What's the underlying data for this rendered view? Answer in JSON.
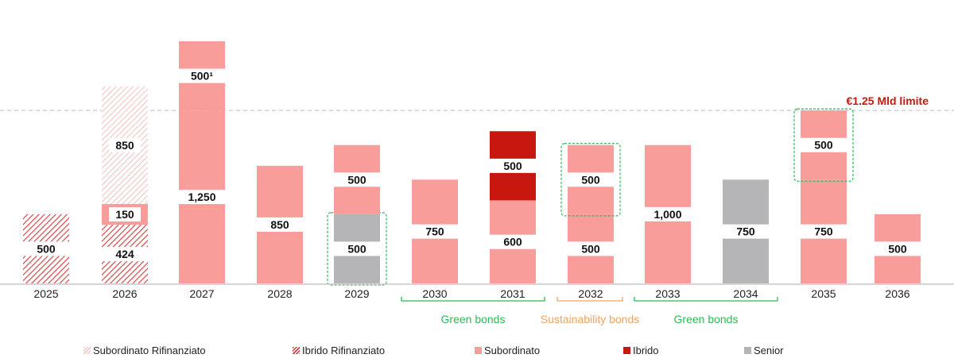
{
  "chart_data": {
    "type": "bar",
    "stacked": true,
    "title": "",
    "xlabel": "",
    "ylabel": "",
    "ylim": [
      0,
      1750
    ],
    "grid": false,
    "categories": [
      "2025",
      "2026",
      "2027",
      "2028",
      "2029",
      "2030",
      "2031",
      "2032",
      "2033",
      "2034",
      "2035",
      "2036"
    ],
    "colors": {
      "Subordinato Rifinanziato": "#f7c6c3",
      "Ibrido Rifinanziato": "#d9393a",
      "Subordinato": "#f99d9b",
      "Ibrido": "#c8170f",
      "Senior": "#b5b5b8",
      "limit": "#c8170f",
      "green": "#2dbb55",
      "orange": "#f4a460"
    },
    "bars": [
      {
        "year": "2025",
        "segments": [
          {
            "series": "Ibrido Rifinanziato",
            "value": 500,
            "label": "500"
          }
        ]
      },
      {
        "year": "2026",
        "segments": [
          {
            "series": "Ibrido Rifinanziato",
            "value": 424,
            "label": "424"
          },
          {
            "series": "Subordinato",
            "value": 150,
            "label": "150"
          },
          {
            "series": "Subordinato Rifinanziato",
            "value": 850,
            "label": "850"
          }
        ]
      },
      {
        "year": "2027",
        "segments": [
          {
            "series": "Subordinato",
            "value": 1250,
            "label": "1,250"
          },
          {
            "series": "Subordinato",
            "value": 500,
            "label": "500¹"
          }
        ]
      },
      {
        "year": "2028",
        "segments": [
          {
            "series": "Subordinato",
            "value": 850,
            "label": "850"
          }
        ]
      },
      {
        "year": "2029",
        "segments": [
          {
            "series": "Senior",
            "value": 500,
            "label": "500",
            "boxed": true
          },
          {
            "series": "Subordinato",
            "value": 500,
            "label": "500"
          }
        ]
      },
      {
        "year": "2030",
        "segments": [
          {
            "series": "Subordinato",
            "value": 750,
            "label": "750"
          }
        ]
      },
      {
        "year": "2031",
        "segments": [
          {
            "series": "Subordinato",
            "value": 600,
            "label": "600"
          },
          {
            "series": "Ibrido",
            "value": 500,
            "label": "500"
          }
        ]
      },
      {
        "year": "2032",
        "segments": [
          {
            "series": "Subordinato",
            "value": 500,
            "label": "500"
          },
          {
            "series": "Subordinato",
            "value": 500,
            "label": "500",
            "boxed": true
          }
        ]
      },
      {
        "year": "2033",
        "segments": [
          {
            "series": "Subordinato",
            "value": 1000,
            "label": "1,000"
          }
        ]
      },
      {
        "year": "2034",
        "segments": [
          {
            "series": "Senior",
            "value": 750,
            "label": "750"
          }
        ]
      },
      {
        "year": "2035",
        "segments": [
          {
            "series": "Subordinato",
            "value": 750,
            "label": "750"
          },
          {
            "series": "Subordinato",
            "value": 500,
            "label": "500",
            "boxed": true
          }
        ]
      },
      {
        "year": "2036",
        "segments": [
          {
            "series": "Subordinato",
            "value": 500,
            "label": "500"
          }
        ]
      }
    ],
    "limit_line": {
      "value": 1250,
      "label": "€1.25 Mld limite"
    },
    "brackets": [
      {
        "from": "2030",
        "to": "2031",
        "label": "Green bonds",
        "color": "green"
      },
      {
        "from": "2032",
        "to": "2032",
        "label": "Sustainability bonds",
        "color": "orange"
      },
      {
        "from": "2033",
        "to": "2034",
        "label": "Green bonds",
        "color": "green"
      }
    ],
    "legend": [
      {
        "name": "Subordinato Rifinanziato",
        "pattern": "hatch-light"
      },
      {
        "name": "Ibrido Rifinanziato",
        "pattern": "hatch-dark"
      },
      {
        "name": "Subordinato",
        "pattern": "solid"
      },
      {
        "name": "Ibrido",
        "pattern": "solid"
      },
      {
        "name": "Senior",
        "pattern": "solid"
      }
    ],
    "legend_position": "bottom"
  }
}
